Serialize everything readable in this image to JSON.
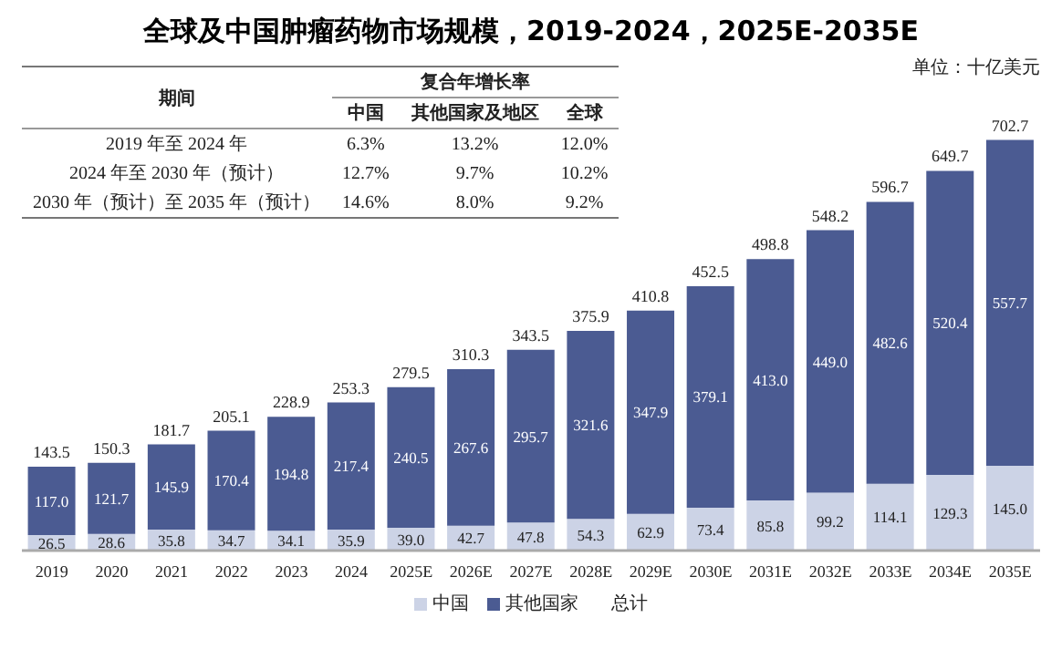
{
  "chart_data": {
    "type": "bar",
    "title": "全球及中国肿瘤药物市场规模，2019-2024，2025E-2035E",
    "categories": [
      "2019",
      "2020",
      "2021",
      "2022",
      "2023",
      "2024",
      "2025E",
      "2026E",
      "2027E",
      "2028E",
      "2029E",
      "2030E",
      "2031E",
      "2032E",
      "2033E",
      "2034E",
      "2035E"
    ],
    "series": [
      {
        "name": "中国",
        "color": "#ccd3e6",
        "values": [
          26.5,
          28.6,
          35.8,
          34.7,
          34.1,
          35.9,
          39.0,
          42.7,
          47.8,
          54.3,
          62.9,
          73.4,
          85.8,
          99.2,
          114.1,
          129.3,
          145.0
        ],
        "value_labels": [
          "26.5",
          "28.6",
          "35.8",
          "34.7",
          "34.1",
          "35.9",
          "39.0",
          "42.7",
          "47.8",
          "54.3",
          "62.9",
          "73.4",
          "85.8",
          "99.2",
          "114.1",
          "129.3",
          "145.0"
        ]
      },
      {
        "name": "其他国家",
        "color": "#4b5b92",
        "values": [
          117.0,
          121.7,
          145.9,
          170.4,
          194.8,
          217.4,
          240.5,
          267.6,
          295.7,
          321.6,
          347.9,
          379.1,
          413.0,
          449.0,
          482.6,
          520.4,
          557.7
        ],
        "value_labels": [
          "117.0",
          "121.7",
          "145.9",
          "170.4",
          "194.8",
          "217.4",
          "240.5",
          "267.6",
          "295.7",
          "321.6",
          "347.9",
          "379.1",
          "413.0",
          "449.0",
          "482.6",
          "520.4",
          "557.7"
        ]
      }
    ],
    "stacked": true,
    "totals": [
      "143.5",
      "150.3",
      "181.7",
      "205.1",
      "228.9",
      "253.3",
      "279.5",
      "310.3",
      "343.5",
      "375.9",
      "410.8",
      "452.5",
      "498.8",
      "548.2",
      "596.7",
      "649.7",
      "702.7"
    ],
    "legend": "bottom",
    "annotations": [
      "单位：十亿美元",
      "总计",
      "期间",
      "复合年增长率",
      "中国",
      "其他国家及地区",
      "全球",
      "2019 年至 2024 年",
      "6.3%",
      "13.2%",
      "12.0%",
      "2024 年至 2030 年（预计）",
      "12.7%",
      "9.7%",
      "10.2%",
      "2030 年（预计）至 2035 年（预计）",
      "14.6%",
      "8.0%",
      "9.2%"
    ]
  }
}
